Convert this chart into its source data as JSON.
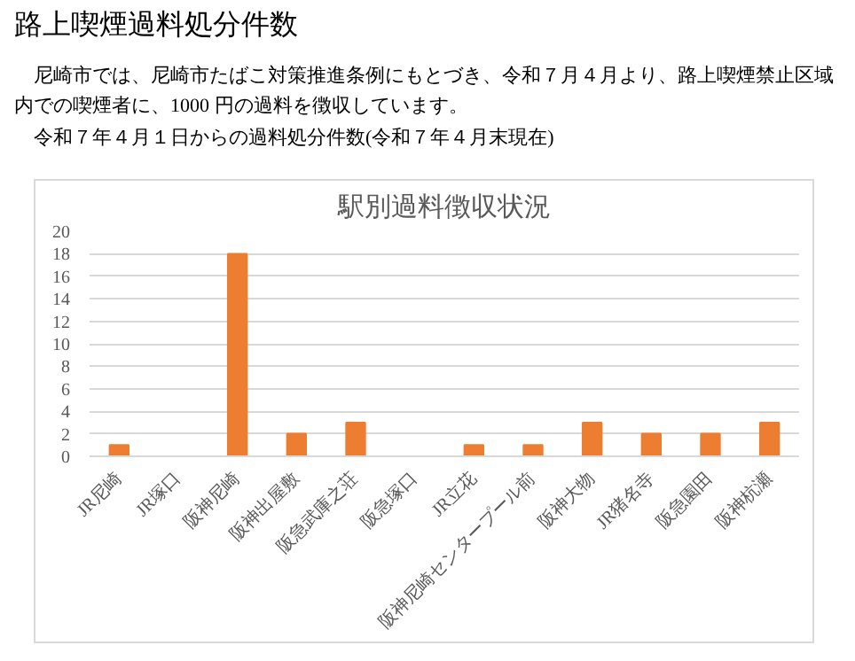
{
  "chart_data": {
    "type": "bar",
    "title": "駅別過料徴収状況",
    "annotations": [
      "路上喫煙過料処分件数",
      "尼崎市では、尼崎市たばこ対策推進条例にもとづき、令和７月４月より、路上喫煙禁止区域内での喫煙者に、1000 円の過料を徴収しています。",
      "令和７年４月１日からの過料処分件数(令和７年４月末現在)"
    ],
    "categories": [
      "JR尼崎",
      "JR塚口",
      "阪神尼崎",
      "阪神出屋敷",
      "阪急武庫之荘",
      "阪急塚口",
      "JR立花",
      "阪神尼崎センタープール前",
      "阪神大物",
      "JR猪名寺",
      "阪急園田",
      "阪神杭瀬"
    ],
    "values": [
      1,
      0,
      18,
      2,
      3,
      0,
      1,
      1,
      3,
      2,
      2,
      3
    ],
    "color": "#ed7d31",
    "ylim": [
      0,
      20
    ],
    "yticks": [
      0,
      2,
      4,
      6,
      8,
      10,
      12,
      14,
      16,
      18,
      20
    ],
    "grid": "y"
  }
}
